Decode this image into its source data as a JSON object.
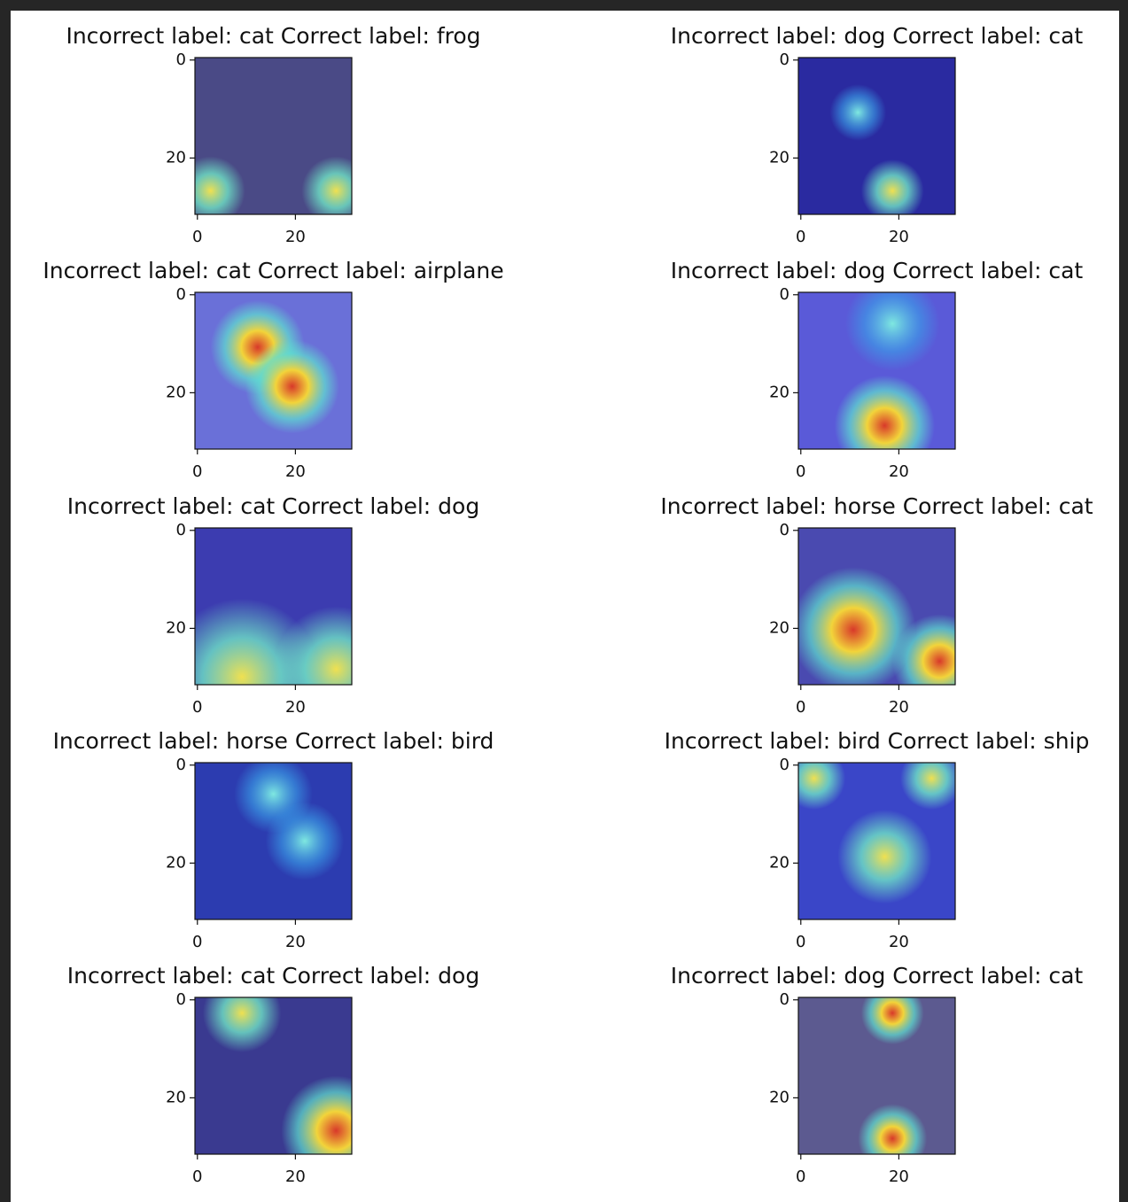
{
  "chart_data": [
    {
      "type": "image",
      "title": "Incorrect label: cat Correct label: frog",
      "xlim": [
        -0.5,
        31.5
      ],
      "ylim": [
        31.5,
        -0.5
      ],
      "xticks": [
        0,
        20
      ],
      "yticks": [
        0,
        20
      ]
    },
    {
      "type": "image",
      "title": "Incorrect label: dog Correct label: cat",
      "xlim": [
        -0.5,
        31.5
      ],
      "ylim": [
        31.5,
        -0.5
      ],
      "xticks": [
        0,
        20
      ],
      "yticks": [
        0,
        20
      ]
    },
    {
      "type": "image",
      "title": "Incorrect label: cat Correct label: airplane",
      "xlim": [
        -0.5,
        31.5
      ],
      "ylim": [
        31.5,
        -0.5
      ],
      "xticks": [
        0,
        20
      ],
      "yticks": [
        0,
        20
      ]
    },
    {
      "type": "image",
      "title": "Incorrect label: dog Correct label: cat",
      "xlim": [
        -0.5,
        31.5
      ],
      "ylim": [
        31.5,
        -0.5
      ],
      "xticks": [
        0,
        20
      ],
      "yticks": [
        0,
        20
      ]
    },
    {
      "type": "image",
      "title": "Incorrect label: cat Correct label: dog",
      "xlim": [
        -0.5,
        31.5
      ],
      "ylim": [
        31.5,
        -0.5
      ],
      "xticks": [
        0,
        20
      ],
      "yticks": [
        0,
        20
      ]
    },
    {
      "type": "image",
      "title": "Incorrect label: horse Correct label: cat",
      "xlim": [
        -0.5,
        31.5
      ],
      "ylim": [
        31.5,
        -0.5
      ],
      "xticks": [
        0,
        20
      ],
      "yticks": [
        0,
        20
      ]
    },
    {
      "type": "image",
      "title": "Incorrect label: horse Correct label: bird",
      "xlim": [
        -0.5,
        31.5
      ],
      "ylim": [
        31.5,
        -0.5
      ],
      "xticks": [
        0,
        20
      ],
      "yticks": [
        0,
        20
      ]
    },
    {
      "type": "image",
      "title": "Incorrect label: bird Correct label: ship",
      "xlim": [
        -0.5,
        31.5
      ],
      "ylim": [
        31.5,
        -0.5
      ],
      "xticks": [
        0,
        20
      ],
      "yticks": [
        0,
        20
      ]
    },
    {
      "type": "image",
      "title": "Incorrect label: cat Correct label: dog",
      "xlim": [
        -0.5,
        31.5
      ],
      "ylim": [
        31.5,
        -0.5
      ],
      "xticks": [
        0,
        20
      ],
      "yticks": [
        0,
        20
      ]
    },
    {
      "type": "image",
      "title": "Incorrect label: dog Correct label: cat",
      "xlim": [
        -0.5,
        31.5
      ],
      "ylim": [
        31.5,
        -0.5
      ],
      "xticks": [
        0,
        20
      ],
      "yticks": [
        0,
        20
      ]
    }
  ]
}
